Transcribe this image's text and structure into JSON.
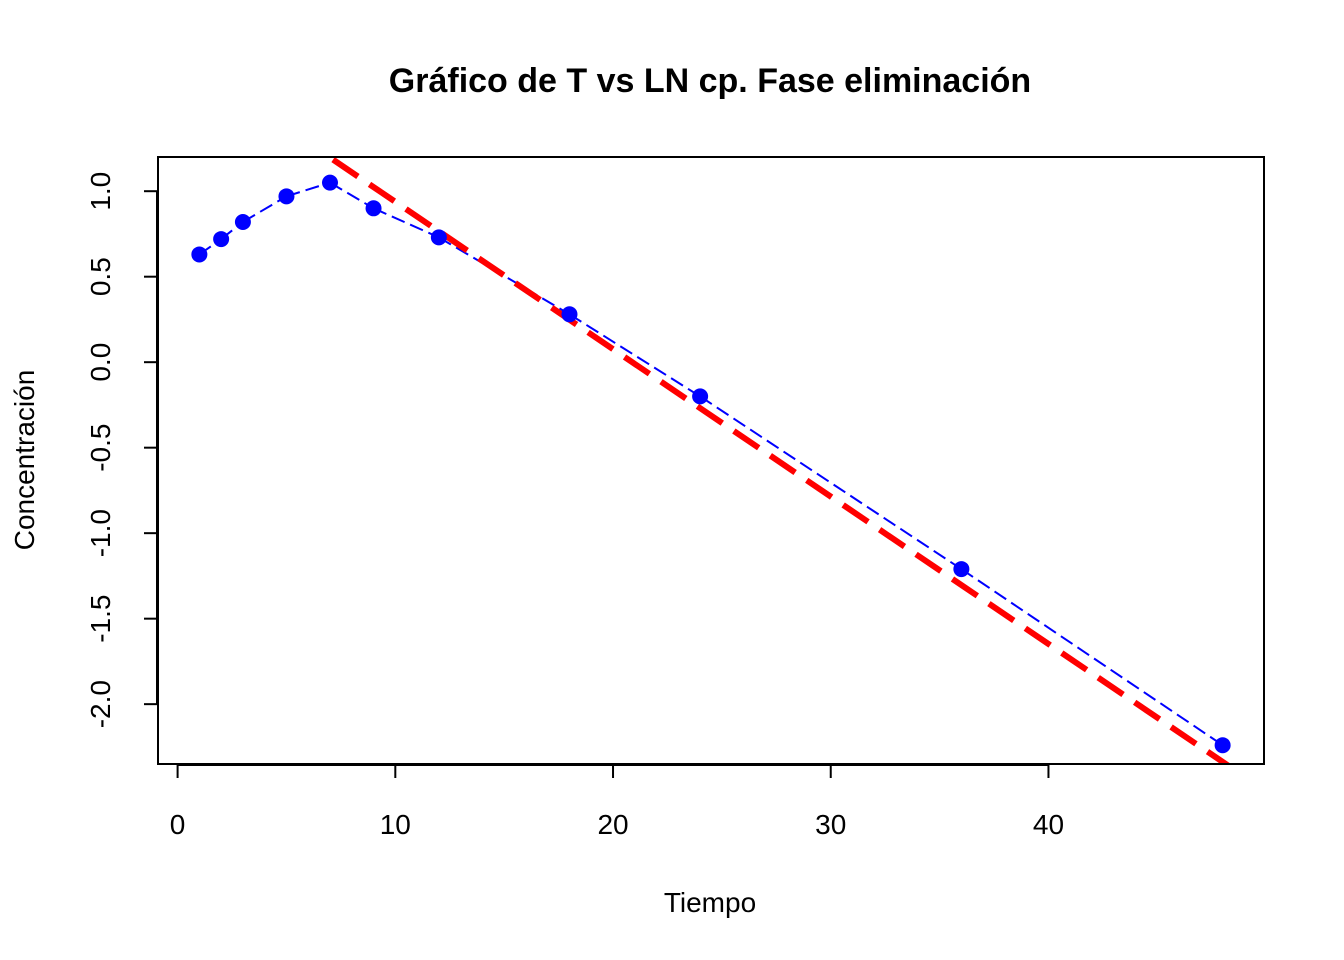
{
  "chart_data": {
    "type": "line",
    "title": "Gráfico de T vs LN cp. Fase eliminación",
    "xlabel": "Tiempo",
    "ylabel": "Concentración",
    "xlim": [
      -0.9,
      49.9
    ],
    "ylim": [
      -2.35,
      1.2
    ],
    "x_ticks": [
      0,
      10,
      20,
      30,
      40
    ],
    "x_tick_labels": [
      "0",
      "10",
      "20",
      "30",
      "40"
    ],
    "y_ticks": [
      -2.0,
      -1.5,
      -1.0,
      -0.5,
      0.0,
      0.5,
      1.0
    ],
    "y_tick_labels": [
      "-2.0",
      "-1.5",
      "-1.0",
      "-0.5",
      "0.0",
      "0.5",
      "1.0"
    ],
    "grid": false,
    "series": [
      {
        "kind": "points-and-dashed-line",
        "color": "#0000ff",
        "x": [
          1,
          2,
          3,
          5,
          7,
          9,
          12,
          18,
          24,
          36,
          48
        ],
        "y": [
          0.63,
          0.72,
          0.82,
          0.97,
          1.05,
          0.9,
          0.73,
          0.28,
          -0.2,
          -1.21,
          -2.24
        ]
      },
      {
        "kind": "regression-line",
        "color": "#ff0000",
        "intercept": 1.8,
        "slope": -0.0862
      }
    ]
  }
}
